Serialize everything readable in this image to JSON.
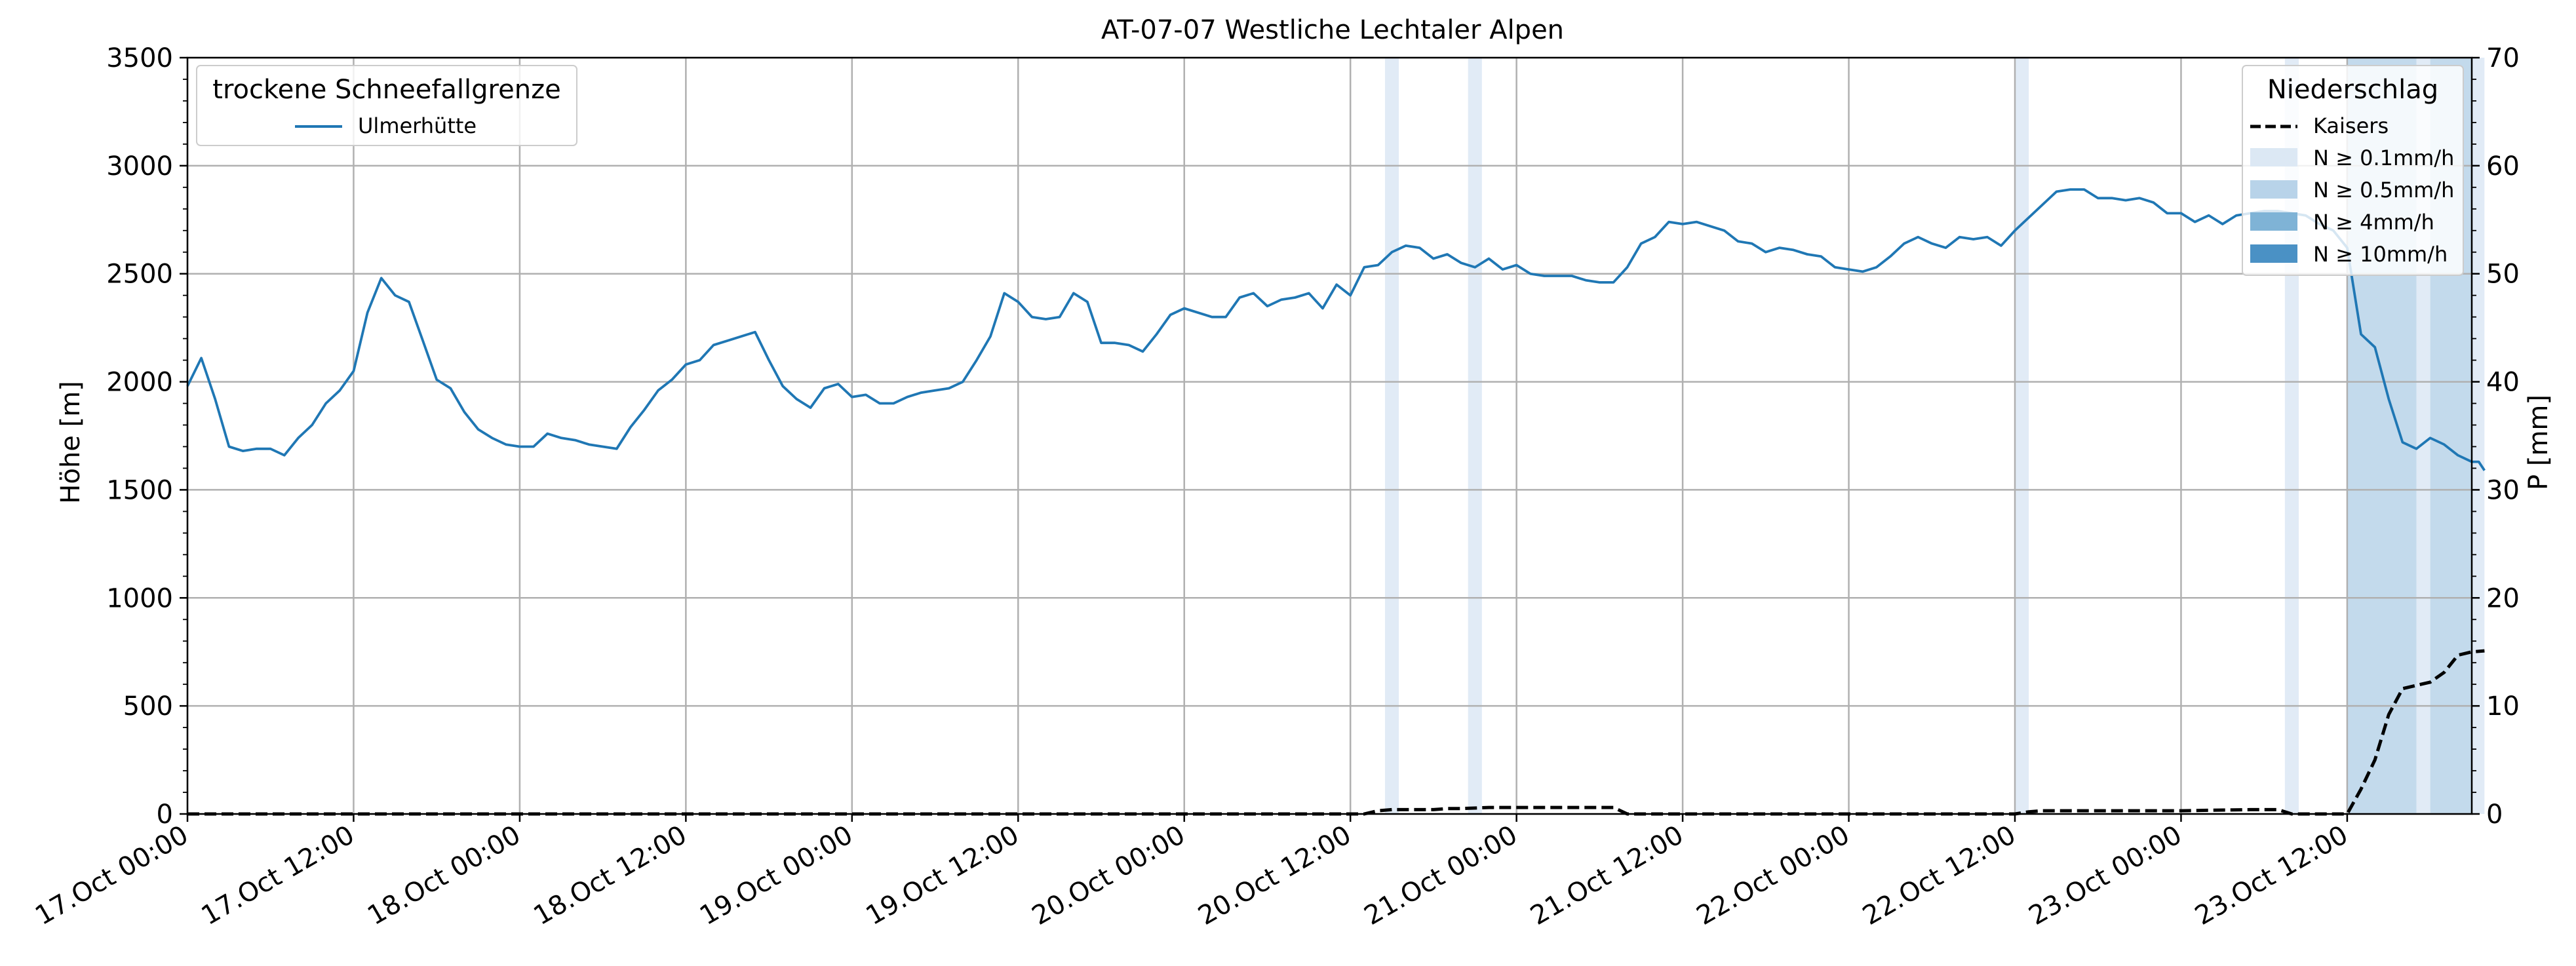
{
  "chart_data": {
    "type": "line",
    "title": "AT-07-07 Westliche Lechtaler Alpen",
    "ylabel": "Höhe [m]",
    "y2label": "P [mm]",
    "ylim": [
      0,
      3500
    ],
    "y2lim": [
      0,
      70
    ],
    "xlim": [
      "17.Oct 00:00",
      "23.Oct 21:00"
    ],
    "x_ticks": [
      "17.Oct 00:00",
      "17.Oct 12:00",
      "18.Oct 00:00",
      "18.Oct 12:00",
      "19.Oct 00:00",
      "19.Oct 12:00",
      "20.Oct 00:00",
      "20.Oct 12:00",
      "21.Oct 00:00",
      "21.Oct 12:00",
      "22.Oct 00:00",
      "22.Oct 12:00",
      "23.Oct 00:00",
      "23.Oct 12:00"
    ],
    "y_ticks": [
      0,
      500,
      1000,
      1500,
      2000,
      2500,
      3000,
      3500
    ],
    "y2_ticks": [
      0,
      10,
      20,
      30,
      40,
      50,
      60,
      70
    ],
    "grid": true,
    "series": [
      {
        "name": "Ulmerhütte",
        "axis": "left",
        "color": "#1f77b4",
        "style": "solid",
        "points": [
          [
            "17.Oct 00:00",
            1980
          ],
          [
            "17.Oct 01:00",
            2110
          ],
          [
            "17.Oct 02:00",
            1920
          ],
          [
            "17.Oct 03:00",
            1700
          ],
          [
            "17.Oct 04:00",
            1680
          ],
          [
            "17.Oct 05:00",
            1690
          ],
          [
            "17.Oct 06:00",
            1690
          ],
          [
            "17.Oct 07:00",
            1660
          ],
          [
            "17.Oct 08:00",
            1740
          ],
          [
            "17.Oct 09:00",
            1800
          ],
          [
            "17.Oct 10:00",
            1900
          ],
          [
            "17.Oct 11:00",
            1960
          ],
          [
            "17.Oct 12:00",
            2050
          ],
          [
            "17.Oct 13:00",
            2320
          ],
          [
            "17.Oct 14:00",
            2480
          ],
          [
            "17.Oct 15:00",
            2400
          ],
          [
            "17.Oct 16:00",
            2370
          ],
          [
            "17.Oct 17:00",
            2190
          ],
          [
            "17.Oct 18:00",
            2010
          ],
          [
            "17.Oct 19:00",
            1970
          ],
          [
            "17.Oct 20:00",
            1860
          ],
          [
            "17.Oct 21:00",
            1780
          ],
          [
            "17.Oct 22:00",
            1740
          ],
          [
            "17.Oct 23:00",
            1710
          ],
          [
            "18.Oct 00:00",
            1700
          ],
          [
            "18.Oct 01:00",
            1700
          ],
          [
            "18.Oct 02:00",
            1760
          ],
          [
            "18.Oct 03:00",
            1740
          ],
          [
            "18.Oct 04:00",
            1730
          ],
          [
            "18.Oct 05:00",
            1710
          ],
          [
            "18.Oct 06:00",
            1700
          ],
          [
            "18.Oct 07:00",
            1690
          ],
          [
            "18.Oct 08:00",
            1790
          ],
          [
            "18.Oct 09:00",
            1870
          ],
          [
            "18.Oct 10:00",
            1960
          ],
          [
            "18.Oct 11:00",
            2010
          ],
          [
            "18.Oct 12:00",
            2080
          ],
          [
            "18.Oct 13:00",
            2100
          ],
          [
            "18.Oct 14:00",
            2170
          ],
          [
            "18.Oct 15:00",
            2190
          ],
          [
            "18.Oct 16:00",
            2210
          ],
          [
            "18.Oct 17:00",
            2230
          ],
          [
            "18.Oct 18:00",
            2100
          ],
          [
            "18.Oct 19:00",
            1980
          ],
          [
            "18.Oct 20:00",
            1920
          ],
          [
            "18.Oct 21:00",
            1880
          ],
          [
            "18.Oct 22:00",
            1970
          ],
          [
            "18.Oct 23:00",
            1990
          ],
          [
            "19.Oct 00:00",
            1930
          ],
          [
            "19.Oct 01:00",
            1940
          ],
          [
            "19.Oct 02:00",
            1900
          ],
          [
            "19.Oct 03:00",
            1900
          ],
          [
            "19.Oct 04:00",
            1930
          ],
          [
            "19.Oct 05:00",
            1950
          ],
          [
            "19.Oct 06:00",
            1960
          ],
          [
            "19.Oct 07:00",
            1970
          ],
          [
            "19.Oct 08:00",
            2000
          ],
          [
            "19.Oct 09:00",
            2100
          ],
          [
            "19.Oct 10:00",
            2210
          ],
          [
            "19.Oct 11:00",
            2410
          ],
          [
            "19.Oct 12:00",
            2370
          ],
          [
            "19.Oct 13:00",
            2300
          ],
          [
            "19.Oct 14:00",
            2290
          ],
          [
            "19.Oct 15:00",
            2300
          ],
          [
            "19.Oct 16:00",
            2410
          ],
          [
            "19.Oct 17:00",
            2370
          ],
          [
            "19.Oct 18:00",
            2180
          ],
          [
            "19.Oct 19:00",
            2180
          ],
          [
            "19.Oct 20:00",
            2170
          ],
          [
            "19.Oct 21:00",
            2140
          ],
          [
            "19.Oct 22:00",
            2220
          ],
          [
            "19.Oct 23:00",
            2310
          ],
          [
            "20.Oct 00:00",
            2340
          ],
          [
            "20.Oct 01:00",
            2320
          ],
          [
            "20.Oct 02:00",
            2300
          ],
          [
            "20.Oct 03:00",
            2300
          ],
          [
            "20.Oct 04:00",
            2390
          ],
          [
            "20.Oct 05:00",
            2410
          ],
          [
            "20.Oct 06:00",
            2350
          ],
          [
            "20.Oct 07:00",
            2380
          ],
          [
            "20.Oct 08:00",
            2390
          ],
          [
            "20.Oct 09:00",
            2410
          ],
          [
            "20.Oct 10:00",
            2340
          ],
          [
            "20.Oct 11:00",
            2450
          ],
          [
            "20.Oct 12:00",
            2400
          ],
          [
            "20.Oct 13:00",
            2530
          ],
          [
            "20.Oct 14:00",
            2540
          ],
          [
            "20.Oct 15:00",
            2600
          ],
          [
            "20.Oct 16:00",
            2630
          ],
          [
            "20.Oct 17:00",
            2620
          ],
          [
            "20.Oct 18:00",
            2570
          ],
          [
            "20.Oct 19:00",
            2590
          ],
          [
            "20.Oct 20:00",
            2550
          ],
          [
            "20.Oct 21:00",
            2530
          ],
          [
            "20.Oct 22:00",
            2570
          ],
          [
            "20.Oct 23:00",
            2520
          ],
          [
            "21.Oct 00:00",
            2540
          ],
          [
            "21.Oct 01:00",
            2500
          ],
          [
            "21.Oct 02:00",
            2490
          ],
          [
            "21.Oct 03:00",
            2490
          ],
          [
            "21.Oct 04:00",
            2490
          ],
          [
            "21.Oct 05:00",
            2470
          ],
          [
            "21.Oct 06:00",
            2460
          ],
          [
            "21.Oct 07:00",
            2460
          ],
          [
            "21.Oct 08:00",
            2530
          ],
          [
            "21.Oct 09:00",
            2640
          ],
          [
            "21.Oct 10:00",
            2670
          ],
          [
            "21.Oct 11:00",
            2740
          ],
          [
            "21.Oct 12:00",
            2730
          ],
          [
            "21.Oct 13:00",
            2740
          ],
          [
            "21.Oct 14:00",
            2720
          ],
          [
            "21.Oct 15:00",
            2700
          ],
          [
            "21.Oct 16:00",
            2650
          ],
          [
            "21.Oct 17:00",
            2640
          ],
          [
            "21.Oct 18:00",
            2600
          ],
          [
            "21.Oct 19:00",
            2620
          ],
          [
            "21.Oct 20:00",
            2610
          ],
          [
            "21.Oct 21:00",
            2590
          ],
          [
            "21.Oct 22:00",
            2580
          ],
          [
            "21.Oct 23:00",
            2530
          ],
          [
            "22.Oct 00:00",
            2520
          ],
          [
            "22.Oct 01:00",
            2510
          ],
          [
            "22.Oct 02:00",
            2530
          ],
          [
            "22.Oct 03:00",
            2580
          ],
          [
            "22.Oct 04:00",
            2640
          ],
          [
            "22.Oct 05:00",
            2670
          ],
          [
            "22.Oct 06:00",
            2640
          ],
          [
            "22.Oct 07:00",
            2620
          ],
          [
            "22.Oct 08:00",
            2670
          ],
          [
            "22.Oct 09:00",
            2660
          ],
          [
            "22.Oct 10:00",
            2670
          ],
          [
            "22.Oct 11:00",
            2630
          ],
          [
            "22.Oct 12:00",
            2700
          ],
          [
            "22.Oct 13:00",
            2760
          ],
          [
            "22.Oct 14:00",
            2820
          ],
          [
            "22.Oct 15:00",
            2880
          ],
          [
            "22.Oct 16:00",
            2890
          ],
          [
            "22.Oct 17:00",
            2890
          ],
          [
            "22.Oct 18:00",
            2850
          ],
          [
            "22.Oct 19:00",
            2850
          ],
          [
            "22.Oct 20:00",
            2840
          ],
          [
            "22.Oct 21:00",
            2850
          ],
          [
            "22.Oct 22:00",
            2830
          ],
          [
            "22.Oct 23:00",
            2780
          ],
          [
            "23.Oct 00:00",
            2780
          ],
          [
            "23.Oct 01:00",
            2740
          ],
          [
            "23.Oct 02:00",
            2770
          ],
          [
            "23.Oct 03:00",
            2730
          ],
          [
            "23.Oct 04:00",
            2770
          ],
          [
            "23.Oct 05:00",
            2780
          ],
          [
            "23.Oct 06:00",
            2790
          ],
          [
            "23.Oct 07:00",
            2790
          ],
          [
            "23.Oct 08:00",
            2780
          ],
          [
            "23.Oct 09:00",
            2770
          ],
          [
            "23.Oct 10:00",
            2730
          ],
          [
            "23.Oct 11:00",
            2700
          ],
          [
            "23.Oct 12:00",
            2620
          ],
          [
            "23.Oct 13:00",
            2220
          ],
          [
            "23.Oct 14:00",
            2160
          ],
          [
            "23.Oct 15:00",
            1920
          ],
          [
            "23.Oct 16:00",
            1720
          ],
          [
            "23.Oct 17:00",
            1690
          ],
          [
            "23.Oct 18:00",
            1740
          ],
          [
            "23.Oct 19:00",
            1710
          ],
          [
            "23.Oct 20:00",
            1660
          ],
          [
            "23.Oct 21:00",
            1630
          ],
          [
            "23.Oct 21:30",
            1630
          ],
          [
            "23.Oct 21:55",
            1590
          ]
        ]
      },
      {
        "name": "Kaisers",
        "axis": "right",
        "color": "#000000",
        "style": "dashed",
        "points": [
          [
            "17.Oct 00:00",
            0
          ],
          [
            "20.Oct 12:00",
            0
          ],
          [
            "20.Oct 13:00",
            0
          ],
          [
            "20.Oct 14:00",
            0.3
          ],
          [
            "20.Oct 15:00",
            0.4
          ],
          [
            "20.Oct 16:00",
            0.4
          ],
          [
            "20.Oct 18:00",
            0.4
          ],
          [
            "20.Oct 19:00",
            0.5
          ],
          [
            "20.Oct 20:00",
            0.5
          ],
          [
            "20.Oct 22:00",
            0.6
          ],
          [
            "21.Oct 00:00",
            0.6
          ],
          [
            "21.Oct 06:00",
            0.6
          ],
          [
            "21.Oct 07:00",
            0.6
          ],
          [
            "21.Oct 08:00",
            0
          ],
          [
            "22.Oct 00:00",
            0
          ],
          [
            "22.Oct 12:00",
            0
          ],
          [
            "22.Oct 13:00",
            0.2
          ],
          [
            "22.Oct 14:00",
            0.3
          ],
          [
            "23.Oct 00:00",
            0.3
          ],
          [
            "23.Oct 05:00",
            0.4
          ],
          [
            "23.Oct 07:00",
            0.4
          ],
          [
            "23.Oct 08:00",
            0
          ],
          [
            "23.Oct 12:00",
            0
          ],
          [
            "23.Oct 13:00",
            2.3
          ],
          [
            "23.Oct 14:00",
            5.0
          ],
          [
            "23.Oct 15:00",
            9.2
          ],
          [
            "23.Oct 16:00",
            11.6
          ],
          [
            "23.Oct 17:00",
            11.9
          ],
          [
            "23.Oct 18:00",
            12.2
          ],
          [
            "23.Oct 19:00",
            13.1
          ],
          [
            "23.Oct 20:00",
            14.7
          ],
          [
            "23.Oct 21:00",
            15.0
          ],
          [
            "23.Oct 21:55",
            15.1
          ]
        ]
      }
    ],
    "precip_bands": [
      {
        "start": "20.Oct 14:30",
        "end": "20.Oct 15:30",
        "level": "N ≥ 0.1mm/h"
      },
      {
        "start": "20.Oct 20:30",
        "end": "20.Oct 21:30",
        "level": "N ≥ 0.1mm/h"
      },
      {
        "start": "22.Oct 12:00",
        "end": "22.Oct 13:00",
        "level": "N ≥ 0.1mm/h"
      },
      {
        "start": "23.Oct 07:30",
        "end": "23.Oct 08:30",
        "level": "N ≥ 0.1mm/h"
      },
      {
        "start": "23.Oct 12:00",
        "end": "23.Oct 17:00",
        "level": "N ≥ 0.5mm/h"
      },
      {
        "start": "23.Oct 17:00",
        "end": "23.Oct 18:00",
        "level": "N ≥ 0.1mm/h"
      },
      {
        "start": "23.Oct 18:00",
        "end": "23.Oct 21:00",
        "level": "N ≥ 0.5mm/h"
      },
      {
        "start": "23.Oct 21:00",
        "end": "23.Oct 21:55",
        "level": "N ≥ 0.1mm/h"
      }
    ],
    "legends": [
      {
        "title": "trockene Schneefallgrenze",
        "position": "top-left",
        "entries": [
          {
            "label": "Ulmerhütte",
            "type": "line",
            "color": "#1f77b4",
            "style": "solid"
          }
        ]
      },
      {
        "title": "Niederschlag",
        "position": "top-right",
        "entries": [
          {
            "label": "Kaisers",
            "type": "line",
            "color": "#000000",
            "style": "dashed"
          },
          {
            "label": "N ≥ 0.1mm/h",
            "type": "patch",
            "color": "#dce8f4"
          },
          {
            "label": "N ≥ 0.5mm/h",
            "type": "patch",
            "color": "#b8d3e9"
          },
          {
            "label": "N ≥ 4mm/h",
            "type": "patch",
            "color": "#7fb3d6"
          },
          {
            "label": "N ≥ 10mm/h",
            "type": "patch",
            "color": "#4a91c5"
          }
        ]
      }
    ]
  }
}
